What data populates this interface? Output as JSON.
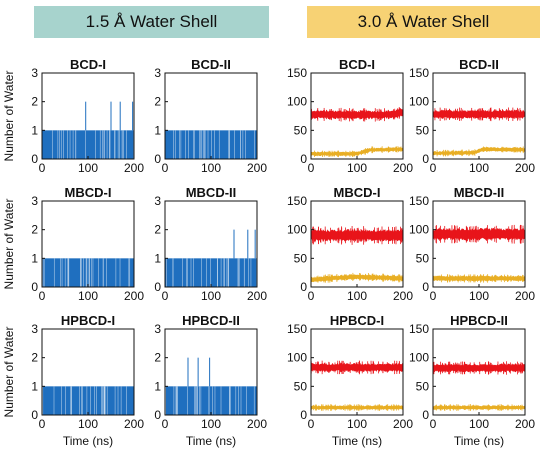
{
  "banners": {
    "left": {
      "text": "1.5 Å Water Shell",
      "color": "#a7d3cd"
    },
    "right": {
      "text": "3.0 Å Water Shell",
      "color": "#f7d274"
    }
  },
  "colors": {
    "blue": "#1f6fbf",
    "red": "#e8141a",
    "gold": "#e8ae24",
    "axis": "#111111"
  },
  "shared_labels": {
    "ylabel": "Number of Water",
    "xlabel": "Time (ns)"
  },
  "chart_data": [
    {
      "panel": "BCD-I",
      "shell": "1.5",
      "title": "BCD-I",
      "type": "line",
      "xlim": [
        0,
        200
      ],
      "ylim": [
        0,
        3
      ],
      "xticks": [
        "0",
        "100",
        "200"
      ],
      "yticks": [
        "0",
        "1",
        "2",
        "3"
      ],
      "series": [
        {
          "baseline_values": [
            0,
            1
          ],
          "spikes": [
            {
              "x": 95,
              "y": 2
            },
            {
              "x": 150,
              "y": 2
            },
            {
              "x": 170,
              "y": 2
            },
            {
              "x": 197,
              "y": 2
            }
          ]
        }
      ]
    },
    {
      "panel": "BCD-II",
      "shell": "1.5",
      "title": "BCD-II",
      "type": "line",
      "xlim": [
        0,
        200
      ],
      "ylim": [
        0,
        3
      ],
      "xticks": [
        "0",
        "100",
        "200"
      ],
      "yticks": [
        "0",
        "1",
        "2",
        "3"
      ],
      "series": [
        {
          "baseline_values": [
            0,
            1
          ],
          "spikes": []
        }
      ]
    },
    {
      "panel": "MBCD-I",
      "shell": "1.5",
      "title": "MBCD-I",
      "type": "line",
      "xlim": [
        0,
        200
      ],
      "ylim": [
        0,
        3
      ],
      "xticks": [
        "0",
        "100",
        "200"
      ],
      "yticks": [
        "0",
        "1",
        "2",
        "3"
      ],
      "series": [
        {
          "baseline_values": [
            0,
            1
          ],
          "spikes": []
        }
      ]
    },
    {
      "panel": "MBCD-II",
      "shell": "1.5",
      "title": "MBCD-II",
      "type": "line",
      "xlim": [
        0,
        200
      ],
      "ylim": [
        0,
        3
      ],
      "xticks": [
        "0",
        "100",
        "200"
      ],
      "yticks": [
        "0",
        "1",
        "2",
        "3"
      ],
      "series": [
        {
          "baseline_values": [
            0,
            1
          ],
          "spikes": [
            {
              "x": 150,
              "y": 2
            },
            {
              "x": 180,
              "y": 2
            },
            {
              "x": 196,
              "y": 2
            }
          ]
        }
      ]
    },
    {
      "panel": "HPBCD-I",
      "shell": "1.5",
      "title": "HPBCD-I",
      "type": "line",
      "xlim": [
        0,
        200
      ],
      "ylim": [
        0,
        3
      ],
      "xticks": [
        "0",
        "100",
        "200"
      ],
      "yticks": [
        "0",
        "1",
        "2",
        "3"
      ],
      "series": [
        {
          "baseline_values": [
            0,
            1
          ],
          "spikes": []
        }
      ]
    },
    {
      "panel": "HPBCD-II",
      "shell": "1.5",
      "title": "HPBCD-II",
      "type": "line",
      "xlim": [
        0,
        200
      ],
      "ylim": [
        0,
        3
      ],
      "xticks": [
        "0",
        "100",
        "200"
      ],
      "yticks": [
        "0",
        "1",
        "2",
        "3"
      ],
      "series": [
        {
          "baseline_values": [
            0,
            1
          ],
          "spikes": [
            {
              "x": 50,
              "y": 2
            },
            {
              "x": 72,
              "y": 2
            },
            {
              "x": 97,
              "y": 2
            }
          ]
        }
      ]
    },
    {
      "panel": "BCD-I",
      "shell": "3.0",
      "title": "BCD-I",
      "type": "line",
      "xlim": [
        0,
        200
      ],
      "ylim": [
        0,
        150
      ],
      "xticks": [
        "0",
        "100",
        "200"
      ],
      "yticks": [
        "0",
        "50",
        "100",
        "150"
      ],
      "series": [
        {
          "color": "red",
          "x": [
            0,
            100,
            150,
            180,
            200
          ],
          "mean": [
            78,
            77,
            77,
            78,
            82
          ],
          "spread": 8
        },
        {
          "color": "gold",
          "x": [
            0,
            100,
            130,
            200
          ],
          "mean": [
            9,
            9,
            16,
            17
          ],
          "spread": 4
        }
      ]
    },
    {
      "panel": "BCD-II",
      "shell": "3.0",
      "title": "BCD-II",
      "type": "line",
      "xlim": [
        0,
        200
      ],
      "ylim": [
        0,
        150
      ],
      "xticks": [
        "0",
        "100",
        "200"
      ],
      "yticks": [
        "0",
        "50",
        "100",
        "150"
      ],
      "series": [
        {
          "color": "red",
          "x": [
            0,
            200
          ],
          "mean": [
            78,
            78
          ],
          "spread": 8
        },
        {
          "color": "gold",
          "x": [
            0,
            90,
            110,
            200
          ],
          "mean": [
            10,
            11,
            17,
            16
          ],
          "spread": 4
        }
      ]
    },
    {
      "panel": "MBCD-I",
      "shell": "3.0",
      "title": "MBCD-I",
      "type": "line",
      "xlim": [
        0,
        200
      ],
      "ylim": [
        0,
        150
      ],
      "xticks": [
        "0",
        "100",
        "200"
      ],
      "yticks": [
        "0",
        "50",
        "100",
        "150"
      ],
      "series": [
        {
          "color": "red",
          "x": [
            0,
            200
          ],
          "mean": [
            90,
            90
          ],
          "spread": 11
        },
        {
          "color": "gold",
          "x": [
            0,
            100,
            200
          ],
          "mean": [
            13,
            18,
            15
          ],
          "spread": 5
        }
      ]
    },
    {
      "panel": "MBCD-II",
      "shell": "3.0",
      "title": "MBCD-II",
      "type": "line",
      "xlim": [
        0,
        200
      ],
      "ylim": [
        0,
        150
      ],
      "xticks": [
        "0",
        "100",
        "200"
      ],
      "yticks": [
        "0",
        "50",
        "100",
        "150"
      ],
      "series": [
        {
          "color": "red",
          "x": [
            0,
            200
          ],
          "mean": [
            92,
            92
          ],
          "spread": 11
        },
        {
          "color": "gold",
          "x": [
            0,
            200
          ],
          "mean": [
            15,
            15
          ],
          "spread": 5
        }
      ]
    },
    {
      "panel": "HPBCD-I",
      "shell": "3.0",
      "title": "HPBCD-I",
      "type": "line",
      "xlim": [
        0,
        200
      ],
      "ylim": [
        0,
        150
      ],
      "xticks": [
        "0",
        "100",
        "200"
      ],
      "yticks": [
        "0",
        "50",
        "100",
        "150"
      ],
      "series": [
        {
          "color": "red",
          "x": [
            0,
            200
          ],
          "mean": [
            83,
            83
          ],
          "spread": 8
        },
        {
          "color": "gold",
          "x": [
            0,
            200
          ],
          "mean": [
            13,
            13
          ],
          "spread": 4
        }
      ]
    },
    {
      "panel": "HPBCD-II",
      "shell": "3.0",
      "title": "HPBCD-II",
      "type": "line",
      "xlim": [
        0,
        200
      ],
      "ylim": [
        0,
        150
      ],
      "xticks": [
        "0",
        "100",
        "200"
      ],
      "yticks": [
        "0",
        "50",
        "100",
        "150"
      ],
      "series": [
        {
          "color": "red",
          "x": [
            0,
            200
          ],
          "mean": [
            82,
            82
          ],
          "spread": 8
        },
        {
          "color": "gold",
          "x": [
            0,
            200
          ],
          "mean": [
            13,
            13
          ],
          "spread": 4
        }
      ]
    }
  ]
}
